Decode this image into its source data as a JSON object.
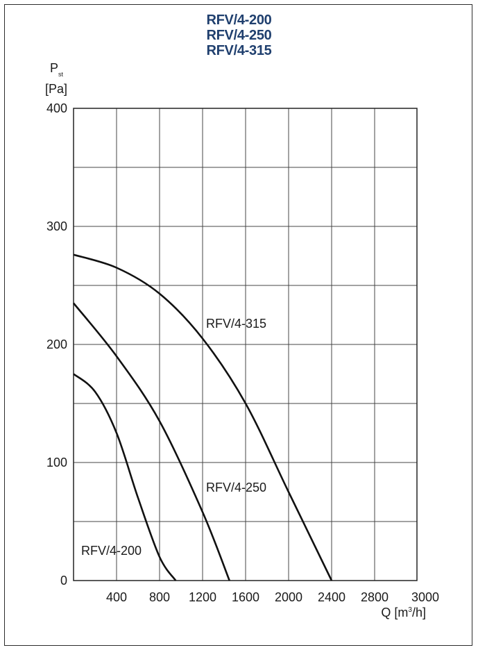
{
  "titles": [
    "RFV/4-200",
    "RFV/4-250",
    "RFV/4-315"
  ],
  "colors": {
    "title": "#1f3f6e",
    "curve": "#111111",
    "grid": "#444444"
  },
  "chart_data": {
    "type": "line",
    "ylabel_main": "P",
    "ylabel_sub": "st",
    "yunit": "[Pa]",
    "xlabel_main": "Q [m",
    "xlabel_sup": "3",
    "xlabel_end": "/h]",
    "xlim": [
      0,
      3000
    ],
    "ylim": [
      0,
      400
    ],
    "x_ticks": [
      400,
      800,
      1200,
      1600,
      2000,
      2400,
      2800,
      3000
    ],
    "y_ticks": [
      0,
      100,
      200,
      300,
      400
    ],
    "x_grid": [
      400,
      800,
      1200,
      1600,
      2000,
      2400,
      2800
    ],
    "y_grid": [
      50,
      100,
      150,
      200,
      250,
      300,
      350
    ],
    "grid": true,
    "series": [
      {
        "name": "RFV/4-315",
        "points": [
          [
            0,
            276
          ],
          [
            400,
            265
          ],
          [
            800,
            243
          ],
          [
            1200,
            205
          ],
          [
            1600,
            150
          ],
          [
            2000,
            75
          ],
          [
            2400,
            0
          ]
        ]
      },
      {
        "name": "RFV/4-250",
        "points": [
          [
            0,
            235
          ],
          [
            400,
            190
          ],
          [
            800,
            135
          ],
          [
            1200,
            58
          ],
          [
            1450,
            0
          ]
        ]
      },
      {
        "name": "RFV/4-200",
        "points": [
          [
            0,
            175
          ],
          [
            200,
            160
          ],
          [
            400,
            125
          ],
          [
            600,
            70
          ],
          [
            800,
            20
          ],
          [
            950,
            0
          ]
        ]
      }
    ]
  }
}
